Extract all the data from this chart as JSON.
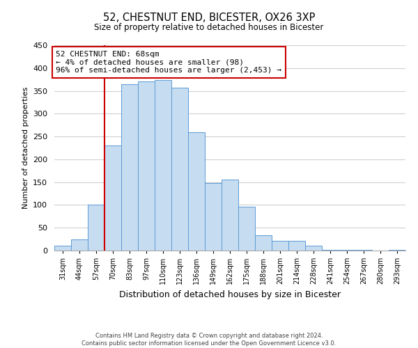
{
  "title1": "52, CHESTNUT END, BICESTER, OX26 3XP",
  "title2": "Size of property relative to detached houses in Bicester",
  "xlabel": "Distribution of detached houses by size in Bicester",
  "ylabel": "Number of detached properties",
  "bin_labels": [
    "31sqm",
    "44sqm",
    "57sqm",
    "70sqm",
    "83sqm",
    "97sqm",
    "110sqm",
    "123sqm",
    "136sqm",
    "149sqm",
    "162sqm",
    "175sqm",
    "188sqm",
    "201sqm",
    "214sqm",
    "228sqm",
    "241sqm",
    "254sqm",
    "267sqm",
    "280sqm",
    "293sqm"
  ],
  "bar_heights": [
    10,
    25,
    101,
    230,
    365,
    370,
    373,
    357,
    260,
    148,
    155,
    96,
    34,
    21,
    21,
    11,
    2,
    1,
    2,
    0,
    1
  ],
  "bar_color": "#c6dcf0",
  "bar_edge_color": "#5b9bd5",
  "vline_x_index": 3,
  "vline_color": "#cc0000",
  "annotation_line1": "52 CHESTNUT END: 68sqm",
  "annotation_line2": "← 4% of detached houses are smaller (98)",
  "annotation_line3": "96% of semi-detached houses are larger (2,453) →",
  "annotation_box_edge": "#cc0000",
  "ylim": [
    0,
    450
  ],
  "yticks": [
    0,
    50,
    100,
    150,
    200,
    250,
    300,
    350,
    400,
    450
  ],
  "footer1": "Contains HM Land Registry data © Crown copyright and database right 2024.",
  "footer2": "Contains public sector information licensed under the Open Government Licence v3.0.",
  "bg_color": "#ffffff",
  "grid_color": "#d0d0d0"
}
